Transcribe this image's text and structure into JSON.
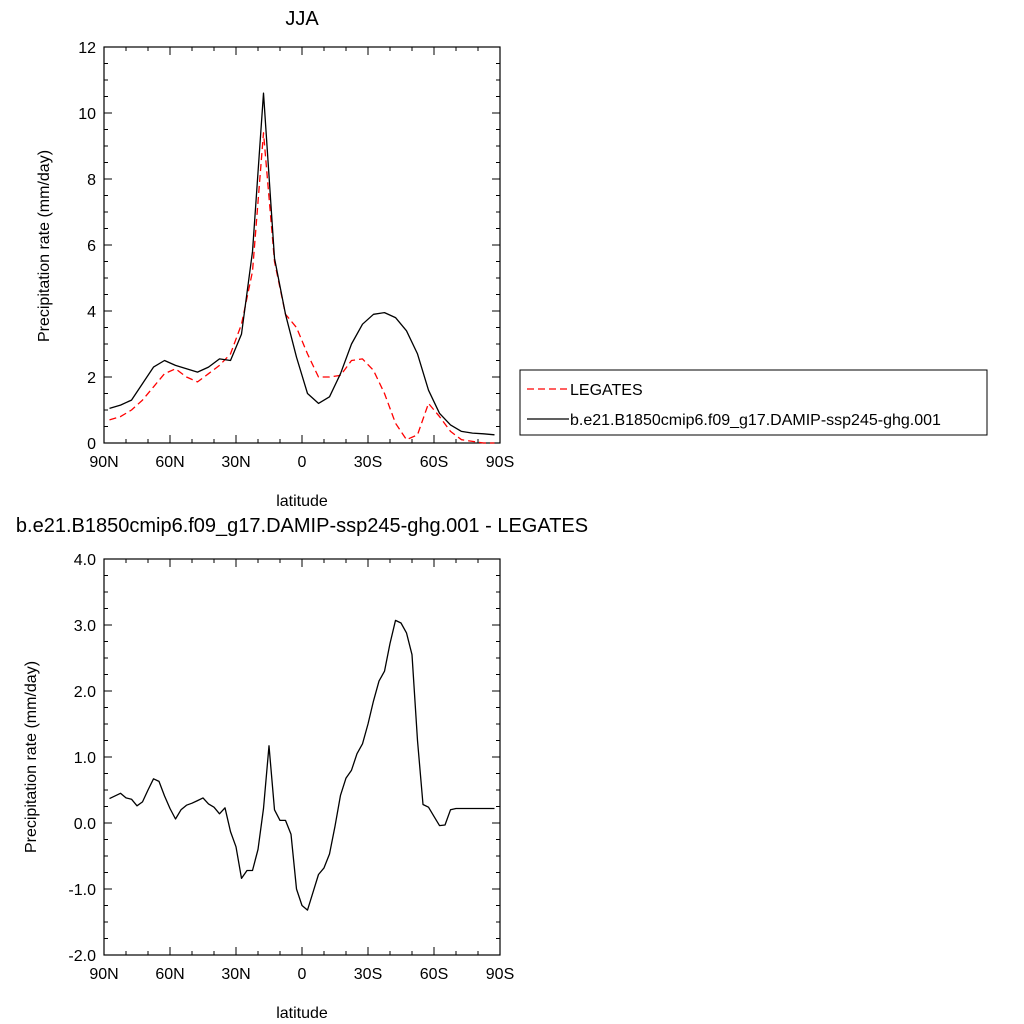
{
  "chart_data": [
    {
      "type": "line",
      "title": "JJA",
      "xlabel": "latitude",
      "ylabel": "Precipitation rate (mm/day)",
      "xlim": [
        90,
        -90
      ],
      "ylim": [
        0,
        12
      ],
      "xticks": [
        90,
        60,
        30,
        0,
        -30,
        -60,
        -90
      ],
      "xtick_labels": [
        "90N",
        "60N",
        "30N",
        "0",
        "30S",
        "60S",
        "90S"
      ],
      "yticks": [
        0,
        2,
        4,
        6,
        8,
        10,
        12
      ],
      "ytick_labels": [
        "0",
        "2",
        "4",
        "6",
        "8",
        "10",
        "12"
      ],
      "grid": false,
      "legend_placement": "right",
      "series": [
        {
          "name": "LEGATES",
          "color": "#ff0000",
          "dash": "dashed",
          "x": [
            87.5,
            82.5,
            77.5,
            72.5,
            67.5,
            62.5,
            57.5,
            52.5,
            47.5,
            42.5,
            37.5,
            32.5,
            27.5,
            22.5,
            17.5,
            12.5,
            7.5,
            2.5,
            -2.5,
            -7.5,
            -12.5,
            -17.5,
            -22.5,
            -27.5,
            -32.5,
            -37.5,
            -42.5,
            -47.5,
            -52.5,
            -57.5,
            -62.5,
            -67.5,
            -72.5,
            -77.5,
            -82.5,
            -87.5
          ],
          "y": [
            0.7,
            0.8,
            1.0,
            1.3,
            1.7,
            2.1,
            2.25,
            2.0,
            1.85,
            2.1,
            2.35,
            2.7,
            3.6,
            5.2,
            9.4,
            5.5,
            3.9,
            3.5,
            2.7,
            2.0,
            2.0,
            2.05,
            2.5,
            2.55,
            2.2,
            1.5,
            0.6,
            0.1,
            0.25,
            1.2,
            0.8,
            0.35,
            0.1,
            0.05,
            0.0,
            0.0
          ]
        },
        {
          "name": "b.e21.B1850cmip6.f09_g17.DAMIP-ssp245-ghg.001",
          "color": "#000000",
          "dash": "solid",
          "x": [
            87.5,
            82.5,
            77.5,
            72.5,
            67.5,
            62.5,
            57.5,
            52.5,
            47.5,
            42.5,
            37.5,
            32.5,
            27.5,
            22.5,
            17.5,
            12.5,
            7.5,
            2.5,
            -2.5,
            -7.5,
            -12.5,
            -17.5,
            -22.5,
            -27.5,
            -32.5,
            -37.5,
            -42.5,
            -47.5,
            -52.5,
            -57.5,
            -62.5,
            -67.5,
            -72.5,
            -77.5,
            -82.5,
            -87.5
          ],
          "y": [
            1.05,
            1.15,
            1.3,
            1.8,
            2.3,
            2.5,
            2.35,
            2.25,
            2.15,
            2.3,
            2.55,
            2.5,
            3.3,
            5.8,
            10.6,
            5.6,
            3.9,
            2.6,
            1.5,
            1.2,
            1.4,
            2.1,
            3.0,
            3.6,
            3.9,
            3.95,
            3.8,
            3.4,
            2.7,
            1.6,
            0.9,
            0.55,
            0.35,
            0.3,
            0.28,
            0.25
          ]
        }
      ]
    },
    {
      "type": "line",
      "title": "b.e21.B1850cmip6.f09_g17.DAMIP-ssp245-ghg.001 - LEGATES",
      "xlabel": "latitude",
      "ylabel": "Precipitation rate (mm/day)",
      "xlim": [
        90,
        -90
      ],
      "ylim": [
        -2.0,
        4.0
      ],
      "xticks": [
        90,
        60,
        30,
        0,
        -30,
        -60,
        -90
      ],
      "xtick_labels": [
        "90N",
        "60N",
        "30N",
        "0",
        "30S",
        "60S",
        "90S"
      ],
      "yticks": [
        -2,
        -1,
        0,
        1,
        2,
        3,
        4
      ],
      "ytick_labels": [
        "-2.0",
        "-1.0",
        "0.0",
        "1.0",
        "2.0",
        "3.0",
        "4.0"
      ],
      "grid": false,
      "series": [
        {
          "color": "#000000",
          "dash": "solid",
          "x": [
            87.5,
            82.5,
            80,
            77.5,
            75,
            72.5,
            70,
            67.5,
            65,
            62.5,
            60,
            57.5,
            55,
            52.5,
            50,
            47.5,
            45,
            42.5,
            40,
            37.5,
            35,
            32.5,
            30,
            27.5,
            25,
            22.5,
            20,
            17.5,
            15,
            12.5,
            10,
            7.5,
            5,
            2.5,
            0,
            -2.5,
            -5,
            -7.5,
            -10,
            -12.5,
            -15,
            -17.5,
            -20,
            -22.5,
            -25,
            -27.5,
            -30,
            -32.5,
            -35,
            -37.5,
            -40,
            -42.5,
            -45,
            -47.5,
            -50,
            -52.5,
            -55,
            -57.5,
            -60,
            -62.5,
            -65,
            -67.5,
            -70,
            -72.5,
            -75,
            -77.5,
            -80,
            -82.5,
            -85,
            -87.5
          ],
          "y": [
            0.37,
            0.45,
            0.38,
            0.36,
            0.26,
            0.32,
            0.5,
            0.67,
            0.63,
            0.41,
            0.22,
            0.06,
            0.2,
            0.27,
            0.3,
            0.34,
            0.38,
            0.29,
            0.24,
            0.14,
            0.23,
            -0.13,
            -0.36,
            -0.84,
            -0.72,
            -0.72,
            -0.4,
            0.22,
            1.17,
            0.2,
            0.04,
            0.04,
            -0.17,
            -1.0,
            -1.25,
            -1.32,
            -1.05,
            -0.78,
            -0.68,
            -0.47,
            -0.05,
            0.42,
            0.68,
            0.8,
            1.05,
            1.2,
            1.5,
            1.85,
            2.15,
            2.3,
            2.72,
            3.07,
            3.03,
            2.88,
            2.55,
            1.25,
            0.28,
            0.24,
            0.1,
            -0.04,
            -0.03,
            0.2,
            0.22,
            0.22,
            0.22,
            0.22,
            0.22,
            0.22,
            0.22,
            0.22
          ]
        }
      ]
    }
  ]
}
